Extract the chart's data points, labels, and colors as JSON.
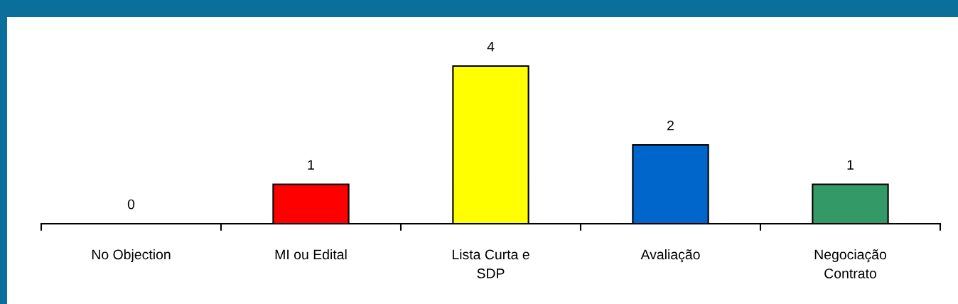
{
  "chart_data": {
    "type": "bar",
    "categories": [
      "No Objection",
      "MI ou Edital",
      "Lista Curta e\nSDP",
      "Avaliação",
      "Negociação\nContrato"
    ],
    "values": [
      0,
      1,
      4,
      2,
      1
    ],
    "colors": [
      null,
      "#ff0000",
      "#ffff00",
      "#0066cc",
      "#339966"
    ],
    "data_labels": true,
    "grid": false,
    "legend": false,
    "tick_labels": "x"
  }
}
